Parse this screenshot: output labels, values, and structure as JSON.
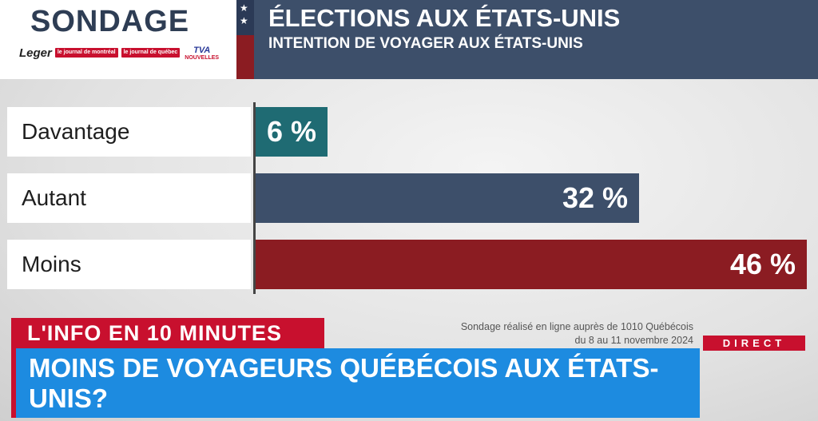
{
  "header": {
    "sondage": "SONDAGE",
    "title": "ÉLECTIONS AUX ÉTATS-UNIS",
    "subtitle": "INTENTION DE VOYAGER AUX ÉTATS-UNIS",
    "logos": {
      "leger": "Leger",
      "journal_montreal": "le journal de montréal",
      "journal_quebec": "le journal de québec",
      "tva": "TVA",
      "nouvelles": "NOUVELLES"
    }
  },
  "chart_data": {
    "type": "bar",
    "orientation": "horizontal",
    "title": "INTENTION DE VOYAGER AUX ÉTATS-UNIS",
    "categories": [
      "Davantage",
      "Autant",
      "Moins"
    ],
    "values": [
      6,
      32,
      46
    ],
    "value_labels": [
      "6 %",
      "32 %",
      "46 %"
    ],
    "unit": "%",
    "colors": [
      "#1f6b73",
      "#3d4f6a",
      "#8b1c22"
    ],
    "xlim": [
      0,
      46
    ],
    "grid": false
  },
  "footer": {
    "program": "L'INFO EN 10 MINUTES",
    "source_line1": "Sondage réalisé en ligne auprès de 1010 Québécois",
    "source_line2": "du 8 au 11 novembre 2024",
    "direct": "DIRECT",
    "question": "MOINS DE VOYAGEURS QUÉBÉCOIS AUX ÉTATS-UNIS?"
  },
  "colors": {
    "navy": "#3d4f6a",
    "red": "#c8102e",
    "dark_red": "#8b1c22",
    "teal": "#1f6b73",
    "blue": "#1d8be0"
  }
}
